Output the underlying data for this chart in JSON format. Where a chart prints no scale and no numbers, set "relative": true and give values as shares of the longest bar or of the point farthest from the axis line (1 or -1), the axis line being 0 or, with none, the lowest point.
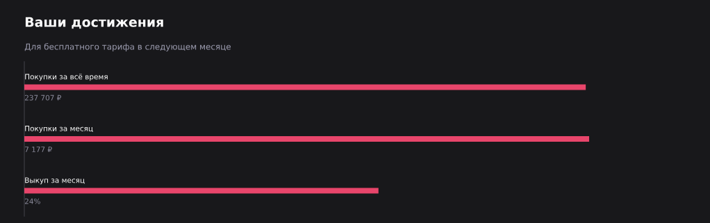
{
  "chart_data": {
    "type": "bar",
    "orientation": "horizontal",
    "relative": true,
    "title": "Ваши достижения",
    "subtitle": "Для бесплатного тарифа в следующем месяце",
    "categories": [
      "Покупки за всё время",
      "Покупки за месяц",
      "Выкуп за месяц"
    ],
    "values": [
      0.994,
      1,
      0.627
    ],
    "annotations": [
      "237 707 ₽",
      "7 177 ₽",
      "24%"
    ],
    "color": "#e8456b"
  }
}
